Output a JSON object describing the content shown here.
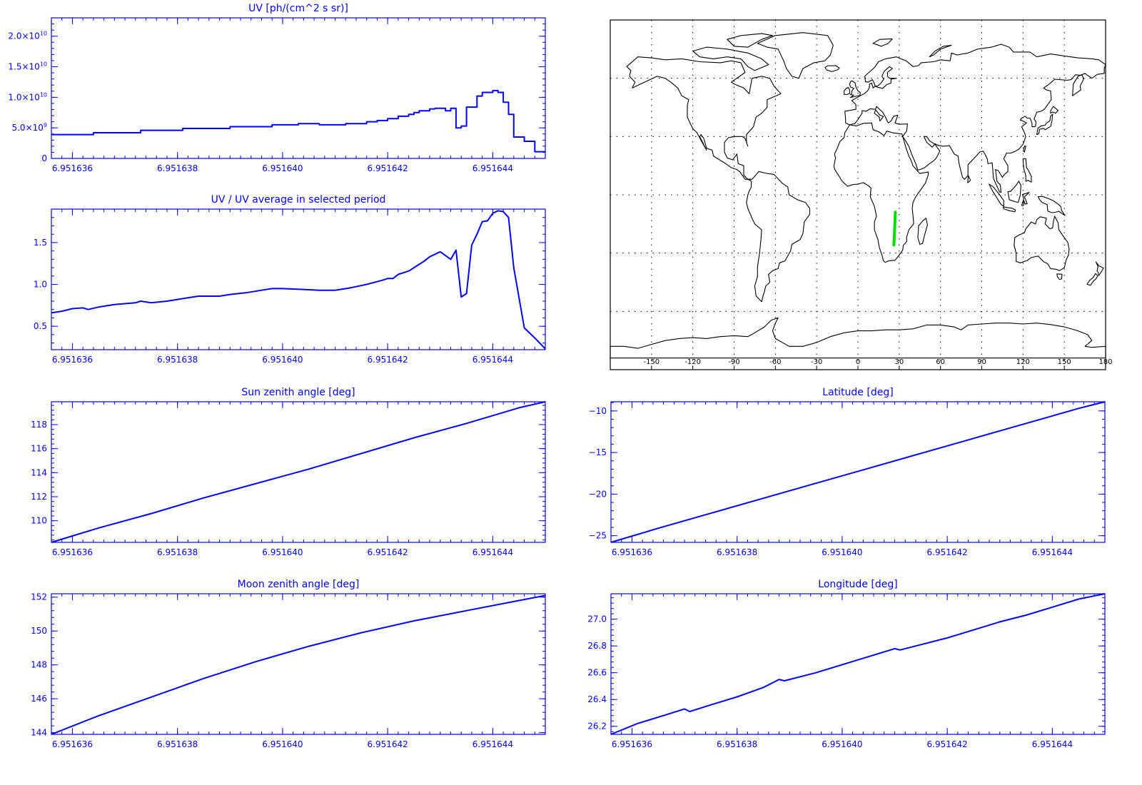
{
  "colors": {
    "axis": "#0000ff",
    "series": "#0000ff",
    "map_outline": "#000000",
    "map_grid": "#000000",
    "track": "#00dd00",
    "background": "#ffffff"
  },
  "chart_data": [
    {
      "id": "uv",
      "type": "line",
      "step": true,
      "title": "UV [ph/(cm^2 s sr)]",
      "xlabel": "",
      "ylabel": "",
      "xlim": [
        6.9516356,
        6.951645
      ],
      "ylim": [
        0,
        23000000000.0
      ],
      "x_ticks": [
        "6.951636",
        "6.951638",
        "6.951640",
        "6.951642",
        "6.951644"
      ],
      "x_tick_values": [
        6.951636,
        6.951638,
        6.95164,
        6.951642,
        6.951644
      ],
      "y_ticks": [
        {
          "value": 0,
          "label": "0",
          "exp": ""
        },
        {
          "value": 5000000000.0,
          "label": "5.0×10",
          "exp": "9"
        },
        {
          "value": 10000000000.0,
          "label": "1.0×10",
          "exp": "10"
        },
        {
          "value": 15000000000.0,
          "label": "1.5×10",
          "exp": "10"
        },
        {
          "value": 20000000000.0,
          "label": "2.0×10",
          "exp": "10"
        }
      ],
      "x": [
        6.9516356,
        6.9516364,
        6.9516373,
        6.9516381,
        6.951639,
        6.9516398,
        6.9516403,
        6.9516407,
        6.9516412,
        6.9516416,
        6.9516418,
        6.951642,
        6.9516422,
        6.9516424,
        6.9516425,
        6.9516426,
        6.9516428,
        6.9516429,
        6.9516431,
        6.9516432,
        6.9516433,
        6.9516434,
        6.9516435,
        6.9516437,
        6.9516438,
        6.951644,
        6.9516441,
        6.9516442,
        6.9516443,
        6.9516444,
        6.9516446,
        6.9516448,
        6.951645
      ],
      "values": [
        3900000000.0,
        4200000000.0,
        4600000000.0,
        4900000000.0,
        5200000000.0,
        5500000000.0,
        5700000000.0,
        5500000000.0,
        5700000000.0,
        6000000000.0,
        6200000000.0,
        6500000000.0,
        6900000000.0,
        7200000000.0,
        7500000000.0,
        7800000000.0,
        8100000000.0,
        8200000000.0,
        7800000000.0,
        8200000000.0,
        5000000000.0,
        5300000000.0,
        8400000000.0,
        10200000000.0,
        10800000000.0,
        11100000000.0,
        10800000000.0,
        9200000000.0,
        7200000000.0,
        3500000000.0,
        2800000000.0,
        1100000000.0,
        1100000000.0
      ]
    },
    {
      "id": "ratio",
      "type": "line",
      "title": "UV / UV average in selected period",
      "xlabel": "",
      "ylabel": "",
      "xlim": [
        6.9516356,
        6.951645
      ],
      "ylim": [
        0.22,
        1.9
      ],
      "x_ticks": [
        "6.951636",
        "6.951638",
        "6.951640",
        "6.951642",
        "6.951644"
      ],
      "x_tick_values": [
        6.951636,
        6.951638,
        6.95164,
        6.951642,
        6.951644
      ],
      "y_ticks": [
        {
          "value": 0.5,
          "label": "0.5",
          "exp": ""
        },
        {
          "value": 1.0,
          "label": "1.0",
          "exp": ""
        },
        {
          "value": 1.5,
          "label": "1.5",
          "exp": ""
        }
      ],
      "x": [
        6.9516356,
        6.9516358,
        6.951636,
        6.9516362,
        6.9516363,
        6.9516365,
        6.9516368,
        6.951637,
        6.9516372,
        6.9516373,
        6.9516375,
        6.9516378,
        6.951638,
        6.9516382,
        6.9516384,
        6.9516386,
        6.9516388,
        6.951639,
        6.9516393,
        6.9516396,
        6.9516398,
        6.95164,
        6.9516404,
        6.9516407,
        6.951641,
        6.9516413,
        6.9516416,
        6.9516419,
        6.951642,
        6.9516421,
        6.9516422,
        6.9516424,
        6.9516425,
        6.9516426,
        6.9516427,
        6.9516428,
        6.951643,
        6.9516432,
        6.9516433,
        6.9516434,
        6.9516435,
        6.9516436,
        6.9516437,
        6.9516438,
        6.9516439,
        6.951644,
        6.9516441,
        6.9516442,
        6.9516443,
        6.9516444,
        6.9516446,
        6.9516448,
        6.951645
      ],
      "values": [
        0.66,
        0.68,
        0.71,
        0.72,
        0.7,
        0.73,
        0.76,
        0.77,
        0.78,
        0.8,
        0.78,
        0.8,
        0.82,
        0.84,
        0.86,
        0.86,
        0.86,
        0.88,
        0.9,
        0.93,
        0.95,
        0.95,
        0.94,
        0.93,
        0.93,
        0.96,
        1.0,
        1.05,
        1.07,
        1.07,
        1.12,
        1.16,
        1.2,
        1.24,
        1.28,
        1.33,
        1.39,
        1.3,
        1.41,
        0.85,
        0.89,
        1.47,
        1.6,
        1.75,
        1.76,
        1.85,
        1.88,
        1.87,
        1.8,
        1.2,
        0.48,
        0.36,
        0.23
      ]
    },
    {
      "id": "sza",
      "type": "line",
      "title": "Sun zenith angle [deg]",
      "xlabel": "",
      "ylabel": "",
      "xlim": [
        6.9516356,
        6.951645
      ],
      "ylim": [
        108.2,
        119.9
      ],
      "x_ticks": [
        "6.951636",
        "6.951638",
        "6.951640",
        "6.951642",
        "6.951644"
      ],
      "x_tick_values": [
        6.951636,
        6.951638,
        6.95164,
        6.951642,
        6.951644
      ],
      "y_ticks": [
        {
          "value": 110,
          "label": "110",
          "exp": ""
        },
        {
          "value": 112,
          "label": "112",
          "exp": ""
        },
        {
          "value": 114,
          "label": "114",
          "exp": ""
        },
        {
          "value": 116,
          "label": "116",
          "exp": ""
        },
        {
          "value": 118,
          "label": "118",
          "exp": ""
        }
      ],
      "x": [
        6.9516356,
        6.9516365,
        6.9516375,
        6.9516385,
        6.9516395,
        6.9516405,
        6.9516415,
        6.9516425,
        6.9516435,
        6.9516445,
        6.951645
      ],
      "values": [
        108.2,
        109.4,
        110.6,
        111.9,
        113.1,
        114.3,
        115.6,
        116.9,
        118.1,
        119.4,
        119.9
      ]
    },
    {
      "id": "lat",
      "type": "line",
      "title": "Latitude [deg]",
      "xlabel": "",
      "ylabel": "",
      "xlim": [
        6.9516356,
        6.951645
      ],
      "ylim": [
        -25.8,
        -8.9
      ],
      "x_ticks": [
        "6.951636",
        "6.951638",
        "6.951640",
        "6.951642",
        "6.951644"
      ],
      "x_tick_values": [
        6.951636,
        6.951638,
        6.95164,
        6.951642,
        6.951644
      ],
      "y_ticks": [
        {
          "value": -25,
          "label": "−25",
          "exp": ""
        },
        {
          "value": -20,
          "label": "−20",
          "exp": ""
        },
        {
          "value": -15,
          "label": "−15",
          "exp": ""
        },
        {
          "value": -10,
          "label": "−10",
          "exp": ""
        }
      ],
      "x": [
        6.9516356,
        6.9516365,
        6.9516375,
        6.9516385,
        6.9516395,
        6.9516405,
        6.9516415,
        6.9516425,
        6.9516435,
        6.9516445,
        6.951645
      ],
      "values": [
        -25.8,
        -24.1,
        -22.3,
        -20.5,
        -18.7,
        -16.9,
        -15.1,
        -13.3,
        -11.5,
        -9.7,
        -8.9
      ]
    },
    {
      "id": "mza",
      "type": "line",
      "title": "Moon zenith angle [deg]",
      "xlabel": "",
      "ylabel": "",
      "xlim": [
        6.9516356,
        6.951645
      ],
      "ylim": [
        143.9,
        152.2
      ],
      "x_ticks": [
        "6.951636",
        "6.951638",
        "6.951640",
        "6.951642",
        "6.951644"
      ],
      "x_tick_values": [
        6.951636,
        6.951638,
        6.95164,
        6.951642,
        6.951644
      ],
      "y_ticks": [
        {
          "value": 144,
          "label": "144",
          "exp": ""
        },
        {
          "value": 146,
          "label": "146",
          "exp": ""
        },
        {
          "value": 148,
          "label": "148",
          "exp": ""
        },
        {
          "value": 150,
          "label": "150",
          "exp": ""
        },
        {
          "value": 152,
          "label": "152",
          "exp": ""
        }
      ],
      "x": [
        6.9516356,
        6.9516365,
        6.9516375,
        6.9516385,
        6.9516395,
        6.9516405,
        6.9516415,
        6.9516425,
        6.9516435,
        6.9516445,
        6.951645
      ],
      "values": [
        143.9,
        145.0,
        146.1,
        147.2,
        148.2,
        149.1,
        149.9,
        150.6,
        151.2,
        151.8,
        152.1
      ]
    },
    {
      "id": "lon",
      "type": "line",
      "title": "Longitude [deg]",
      "xlabel": "",
      "ylabel": "",
      "xlim": [
        6.9516356,
        6.951645
      ],
      "ylim": [
        26.14,
        27.19
      ],
      "x_ticks": [
        "6.951636",
        "6.951638",
        "6.951640",
        "6.951642",
        "6.951644"
      ],
      "x_tick_values": [
        6.951636,
        6.951638,
        6.95164,
        6.951642,
        6.951644
      ],
      "y_ticks": [
        {
          "value": 26.2,
          "label": "26.2",
          "exp": ""
        },
        {
          "value": 26.4,
          "label": "26.4",
          "exp": ""
        },
        {
          "value": 26.6,
          "label": "26.6",
          "exp": ""
        },
        {
          "value": 26.8,
          "label": "26.8",
          "exp": ""
        },
        {
          "value": 27.0,
          "label": "27.0",
          "exp": ""
        }
      ],
      "x": [
        6.9516356,
        6.9516361,
        6.9516366,
        6.951637,
        6.9516371,
        6.9516375,
        6.951638,
        6.9516385,
        6.9516388,
        6.9516389,
        6.9516395,
        6.95164,
        6.9516405,
        6.951641,
        6.9516411,
        6.9516415,
        6.951642,
        6.9516425,
        6.951643,
        6.9516435,
        6.951644,
        6.9516445,
        6.951645
      ],
      "values": [
        26.14,
        26.22,
        26.28,
        26.33,
        26.31,
        26.36,
        26.42,
        26.49,
        26.55,
        26.54,
        26.6,
        26.66,
        26.72,
        26.78,
        26.77,
        26.81,
        26.86,
        26.92,
        26.98,
        27.03,
        27.09,
        27.15,
        27.19
      ]
    },
    {
      "id": "map",
      "type": "map",
      "projection": "cylindrical",
      "lon_range": [
        -180,
        180
      ],
      "lat_range": [
        -90,
        90
      ],
      "x_ticks": [
        "-150",
        "-120",
        "-90",
        "-60",
        "-30",
        "0",
        "30",
        "60",
        "90",
        "120",
        "150",
        "180"
      ],
      "x_tick_values": [
        -150,
        -120,
        -90,
        -60,
        -30,
        0,
        30,
        60,
        90,
        120,
        150,
        180
      ],
      "grid_lons": [
        -150,
        -120,
        -90,
        -60,
        -30,
        0,
        30,
        60,
        90,
        120,
        150
      ],
      "grid_lats": [
        -60,
        -30,
        0,
        30,
        60
      ],
      "track": [
        {
          "lon": 26.14,
          "lat": -25.8
        },
        {
          "lon": 26.66,
          "lat": -17.8
        },
        {
          "lon": 27.19,
          "lat": -8.9
        }
      ]
    }
  ]
}
